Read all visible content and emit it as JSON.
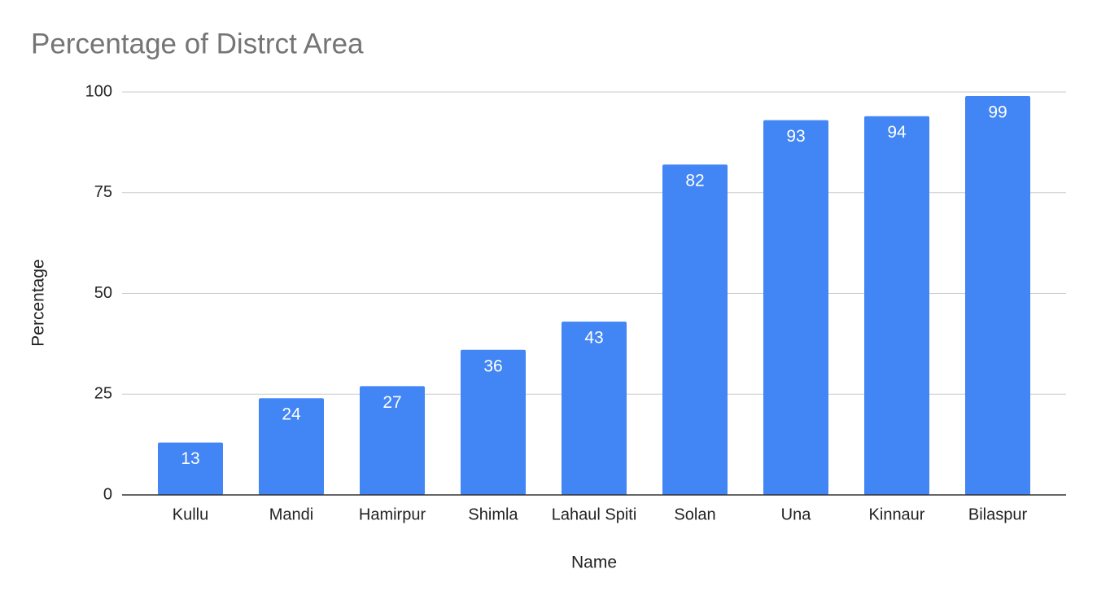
{
  "chart_data": {
    "type": "bar",
    "title": "Percentage of Distrct Area",
    "x_label": "Name",
    "y_label": "Percentage",
    "categories": [
      "Kullu",
      "Mandi",
      "Hamirpur",
      "Shimla",
      "Lahaul Spiti",
      "Solan",
      "Una",
      "Kinnaur",
      "Bilaspur"
    ],
    "values": [
      13,
      24,
      27,
      36,
      43,
      82,
      93,
      94,
      99
    ],
    "color": "#4285f4",
    "ylim": [
      0,
      100
    ],
    "yticks": [
      0,
      25,
      50,
      75,
      100
    ],
    "grid": true
  }
}
